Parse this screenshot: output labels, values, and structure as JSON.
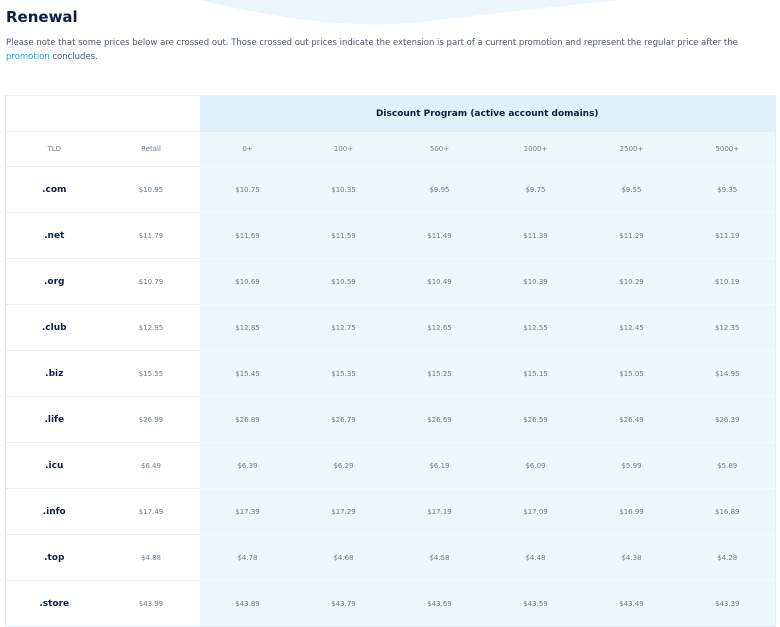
{
  "title": "Renewal",
  "note": {
    "text_before": "Please note that some prices below are crossed out. Those crossed out prices indicate the extension is part of a current promotion and represent the regular price after the",
    "link": "promotion",
    "text_after": "concludes."
  },
  "table": {
    "group_header": "Discount Program (active account domains)",
    "columns": [
      "TLD",
      "Retail",
      "0+",
      "100+",
      "500+",
      "1000+",
      "2500+",
      "5000+"
    ],
    "rows": [
      {
        "tld": ".com",
        "retail": "$10.95",
        "prices": [
          "$10.75",
          "$10.35",
          "$9.95",
          "$9.75",
          "$9.55",
          "$9.35"
        ]
      },
      {
        "tld": ".net",
        "retail": "$11.79",
        "prices": [
          "$11.69",
          "$11.59",
          "$11.49",
          "$11.39",
          "$11.29",
          "$11.19"
        ]
      },
      {
        "tld": ".org",
        "retail": "$10.79",
        "prices": [
          "$10.69",
          "$10.59",
          "$10.49",
          "$10.39",
          "$10.29",
          "$10.19"
        ]
      },
      {
        "tld": ".club",
        "retail": "$12.95",
        "prices": [
          "$12.85",
          "$12.75",
          "$12.65",
          "$12.55",
          "$12.45",
          "$12.35"
        ]
      },
      {
        "tld": ".biz",
        "retail": "$15.55",
        "prices": [
          "$15.45",
          "$15.35",
          "$15.25",
          "$15.15",
          "$15.05",
          "$14.95"
        ]
      },
      {
        "tld": ".life",
        "retail": "$26.99",
        "prices": [
          "$26.89",
          "$26.79",
          "$26.69",
          "$26.59",
          "$26.49",
          "$26.39"
        ]
      },
      {
        "tld": ".icu",
        "retail": "$6.49",
        "prices": [
          "$6.39",
          "$6.29",
          "$6.19",
          "$6.09",
          "$5.99",
          "$5.89"
        ]
      },
      {
        "tld": ".info",
        "retail": "$17.49",
        "prices": [
          "$17.39",
          "$17.29",
          "$17.19",
          "$17.09",
          "$16.99",
          "$16.89"
        ]
      },
      {
        "tld": ".top",
        "retail": "$4.88",
        "prices": [
          "$4.78",
          "$4.68",
          "$4.58",
          "$4.48",
          "$4.38",
          "$4.28"
        ]
      },
      {
        "tld": ".store",
        "retail": "$43.99",
        "prices": [
          "$43.89",
          "$43.79",
          "$43.69",
          "$43.59",
          "$43.49",
          "$43.39"
        ]
      }
    ]
  }
}
